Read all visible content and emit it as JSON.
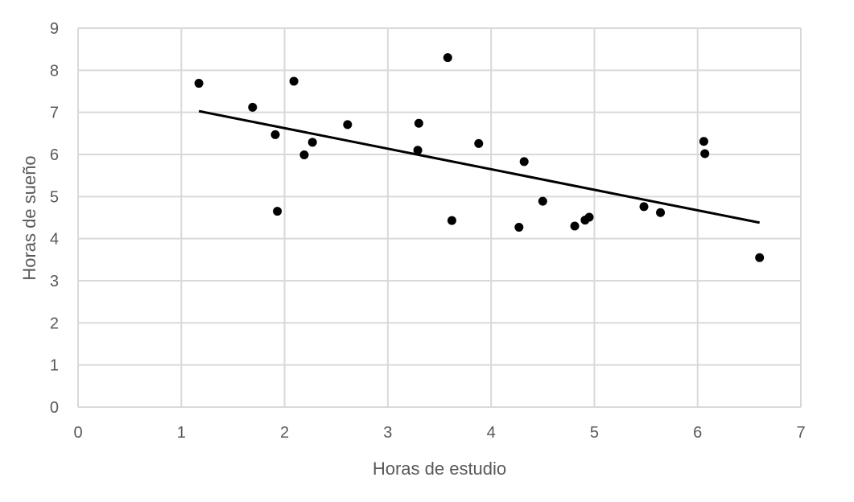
{
  "chart_data": {
    "type": "scatter",
    "xlabel": "Horas de estudio",
    "ylabel": "Horas de sueño",
    "xlim": [
      0,
      7
    ],
    "ylim": [
      0,
      9
    ],
    "x_ticks": [
      "0",
      "1",
      "2",
      "3",
      "4",
      "5",
      "6",
      "7"
    ],
    "y_ticks": [
      "0",
      "1",
      "2",
      "3",
      "4",
      "5",
      "6",
      "7",
      "8",
      "9"
    ],
    "grid": true,
    "marker_color": "#000000",
    "points": [
      {
        "x": 1.17,
        "y": 7.69
      },
      {
        "x": 1.69,
        "y": 7.12
      },
      {
        "x": 1.91,
        "y": 6.47
      },
      {
        "x": 1.93,
        "y": 4.65
      },
      {
        "x": 2.09,
        "y": 7.74
      },
      {
        "x": 2.19,
        "y": 5.99
      },
      {
        "x": 2.27,
        "y": 6.29
      },
      {
        "x": 2.61,
        "y": 6.71
      },
      {
        "x": 3.29,
        "y": 6.1
      },
      {
        "x": 3.3,
        "y": 6.74
      },
      {
        "x": 3.58,
        "y": 8.3
      },
      {
        "x": 3.62,
        "y": 4.43
      },
      {
        "x": 3.88,
        "y": 6.26
      },
      {
        "x": 4.27,
        "y": 4.27
      },
      {
        "x": 4.32,
        "y": 5.83
      },
      {
        "x": 4.5,
        "y": 4.89
      },
      {
        "x": 4.81,
        "y": 4.3
      },
      {
        "x": 4.91,
        "y": 4.44
      },
      {
        "x": 4.95,
        "y": 4.51
      },
      {
        "x": 5.48,
        "y": 4.76
      },
      {
        "x": 5.64,
        "y": 4.62
      },
      {
        "x": 6.06,
        "y": 6.31
      },
      {
        "x": 6.07,
        "y": 6.02
      },
      {
        "x": 6.6,
        "y": 3.55
      }
    ],
    "trendline": {
      "type": "linear",
      "color": "#000000",
      "x": [
        1.17,
        6.6
      ],
      "y": [
        7.03,
        4.38
      ]
    }
  }
}
